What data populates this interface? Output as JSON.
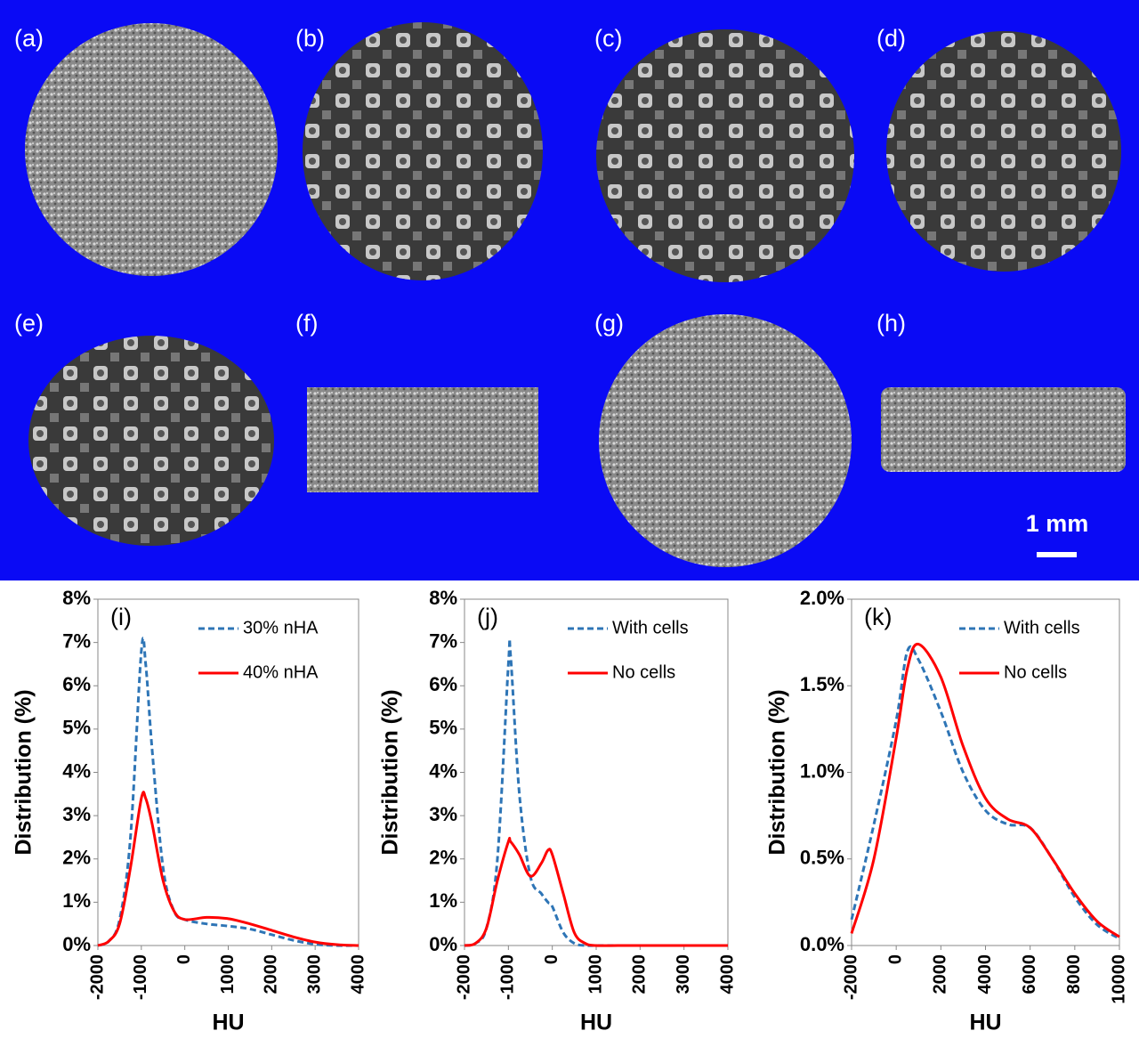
{
  "image_panels": {
    "labels": [
      "(a)",
      "(b)",
      "(c)",
      "(d)",
      "(e)",
      "(f)",
      "(g)",
      "(h)"
    ],
    "scale_bar": "1 mm"
  },
  "chart_data": [
    {
      "type": "line",
      "title": "(i)",
      "xlabel": "HU",
      "ylabel": "Distribution (%)",
      "x": [
        -2000,
        -1750,
        -1500,
        -1250,
        -1000,
        -900,
        -750,
        -500,
        -250,
        0,
        500,
        1000,
        1500,
        2000,
        2500,
        3000,
        3500,
        4000
      ],
      "series": [
        {
          "name": "30% nHA",
          "color": "#2e75b6",
          "dash": true,
          "values": [
            0,
            0.1,
            0.6,
            2.5,
            6.8,
            6.5,
            4.5,
            1.8,
            0.8,
            0.6,
            0.5,
            0.45,
            0.38,
            0.25,
            0.12,
            0.03,
            0,
            0
          ]
        },
        {
          "name": "40% nHA",
          "color": "#ff0000",
          "dash": false,
          "values": [
            0,
            0.1,
            0.5,
            1.8,
            3.4,
            3.4,
            2.8,
            1.5,
            0.8,
            0.6,
            0.65,
            0.62,
            0.5,
            0.35,
            0.2,
            0.08,
            0.02,
            0
          ]
        }
      ],
      "xlim": [
        -2000,
        4000
      ],
      "xticks": [
        -2000,
        -1000,
        0,
        1000,
        2000,
        3000,
        4000
      ],
      "ylim": [
        0,
        8
      ],
      "yticks": [
        {
          "value": 0,
          "label": "0%"
        },
        {
          "value": 1,
          "label": "1%"
        },
        {
          "value": 2,
          "label": "2%"
        },
        {
          "value": 3,
          "label": "3%"
        },
        {
          "value": 4,
          "label": "4%"
        },
        {
          "value": 5,
          "label": "5%"
        },
        {
          "value": 6,
          "label": "6%"
        },
        {
          "value": 7,
          "label": "7%"
        },
        {
          "value": 8,
          "label": "8%"
        }
      ]
    },
    {
      "type": "line",
      "title": "(j)",
      "xlabel": "HU",
      "ylabel": "Distribution (%)",
      "x": [
        -2000,
        -1750,
        -1500,
        -1250,
        -1000,
        -950,
        -750,
        -500,
        -250,
        -100,
        0,
        250,
        500,
        750,
        1000,
        1500,
        2000,
        3000,
        4000
      ],
      "series": [
        {
          "name": "With cells",
          "color": "#2e75b6",
          "dash": true,
          "values": [
            0,
            0.05,
            0.4,
            2.0,
            6.5,
            6.7,
            3.5,
            1.6,
            1.2,
            1.0,
            0.9,
            0.3,
            0.05,
            0,
            0,
            0,
            0,
            0,
            0
          ]
        },
        {
          "name": "No cells",
          "color": "#ff0000",
          "dash": false,
          "values": [
            0,
            0.05,
            0.4,
            1.5,
            2.4,
            2.4,
            2.1,
            1.6,
            1.9,
            2.2,
            2.1,
            1.2,
            0.3,
            0.05,
            0,
            0,
            0,
            0,
            0
          ]
        }
      ],
      "xlim": [
        -2000,
        4000
      ],
      "xticks": [
        -2000,
        -1000,
        0,
        1000,
        2000,
        3000,
        4000
      ],
      "ylim": [
        0,
        8
      ],
      "yticks": [
        {
          "value": 0,
          "label": "0%"
        },
        {
          "value": 1,
          "label": "1%"
        },
        {
          "value": 2,
          "label": "2%"
        },
        {
          "value": 3,
          "label": "3%"
        },
        {
          "value": 4,
          "label": "4%"
        },
        {
          "value": 5,
          "label": "5%"
        },
        {
          "value": 6,
          "label": "6%"
        },
        {
          "value": 7,
          "label": "7%"
        },
        {
          "value": 8,
          "label": "8%"
        }
      ]
    },
    {
      "type": "line",
      "title": "(k)",
      "xlabel": "HU",
      "ylabel": "Distribution (%)",
      "x": [
        -2000,
        -1000,
        0,
        500,
        1000,
        2000,
        3000,
        4000,
        5000,
        6000,
        7000,
        8000,
        9000,
        10000
      ],
      "series": [
        {
          "name": "With cells",
          "color": "#2e75b6",
          "dash": true,
          "values": [
            0.15,
            0.7,
            1.3,
            1.7,
            1.65,
            1.35,
            1.0,
            0.78,
            0.7,
            0.68,
            0.5,
            0.28,
            0.12,
            0.04
          ]
        },
        {
          "name": "No cells",
          "color": "#ff0000",
          "dash": false,
          "values": [
            0.07,
            0.5,
            1.2,
            1.6,
            1.74,
            1.55,
            1.15,
            0.85,
            0.73,
            0.68,
            0.5,
            0.3,
            0.14,
            0.05
          ]
        }
      ],
      "xlim": [
        -2000,
        10000
      ],
      "xticks": [
        -2000,
        0,
        2000,
        4000,
        6000,
        8000,
        10000
      ],
      "ylim": [
        0,
        2
      ],
      "yticks": [
        {
          "value": 0,
          "label": "0.0%"
        },
        {
          "value": 0.5,
          "label": "0.5%"
        },
        {
          "value": 1,
          "label": "1.0%"
        },
        {
          "value": 1.5,
          "label": "1.5%"
        },
        {
          "value": 2,
          "label": "2.0%"
        }
      ]
    }
  ]
}
